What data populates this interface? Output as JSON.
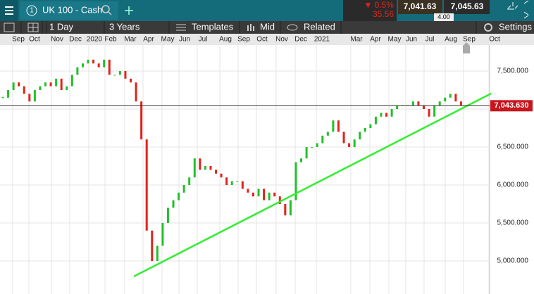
{
  "toolbar": {
    "tab_number": "1",
    "instrument": "UK 100 - Cash",
    "change_pct": "▼ 0.5%",
    "change": "35.56",
    "sell": "7,041.63",
    "spread": "4.00",
    "buy": "7,045.63"
  },
  "menu": {
    "interval": "1 Day",
    "range": "3 Years",
    "templates": "Templates",
    "price_type": "Mid",
    "related": "Related",
    "settings": "Settings"
  },
  "chart_data": {
    "type": "candlestick",
    "x_labels": [
      "Sep",
      "Oct",
      "Nov",
      "Dec",
      "2020",
      "Feb",
      "Mar",
      "Apr",
      "May",
      "Jun",
      "Jul",
      "Aug",
      "Sep",
      "Oct",
      "Nov",
      "Dec",
      "2021",
      "Mar",
      "Apr",
      "May",
      "Jun",
      "Jul",
      "Aug",
      "Sep",
      "Oct"
    ],
    "values": [
      7150,
      7250,
      7350,
      7300,
      7200,
      7100,
      7250,
      7300,
      7350,
      7300,
      7400,
      7250,
      7300,
      7450,
      7550,
      7600,
      7650,
      7600,
      7550,
      7650,
      7450,
      7450,
      7500,
      7400,
      7350,
      7100,
      6600,
      5400,
      5000,
      5200,
      5500,
      5700,
      5800,
      5900,
      6000,
      6100,
      6350,
      6200,
      6250,
      6200,
      6150,
      6100,
      6000,
      6050,
      6050,
      5950,
      5900,
      5850,
      5950,
      5800,
      5900,
      5850,
      5750,
      5600,
      5800,
      6300,
      6350,
      6500,
      6500,
      6550,
      6650,
      6700,
      6850,
      6700,
      6550,
      6500,
      6600,
      6700,
      6750,
      6800,
      6900,
      6950,
      6900,
      7000,
      7050,
      7050,
      7050,
      7100,
      7050,
      7000,
      6900,
      7050,
      7100,
      7150,
      7200,
      7100,
      7050,
      7043
    ],
    "ylim": [
      4565,
      7843
    ],
    "yticks": [
      {
        "value": 5000,
        "label": "5,000.000"
      },
      {
        "value": 5500,
        "label": "5,500.000"
      },
      {
        "value": 6000,
        "label": "6,000.000"
      },
      {
        "value": 6500,
        "label": "6,500.000"
      },
      {
        "value": 7000,
        "label": "7,000.000"
      },
      {
        "value": 7500,
        "label": "7,500.000"
      }
    ],
    "current_price": {
      "value": 7043.63,
      "label": "7,043.630"
    },
    "up_color": "#22c02a",
    "down_color": "#e2231a"
  }
}
